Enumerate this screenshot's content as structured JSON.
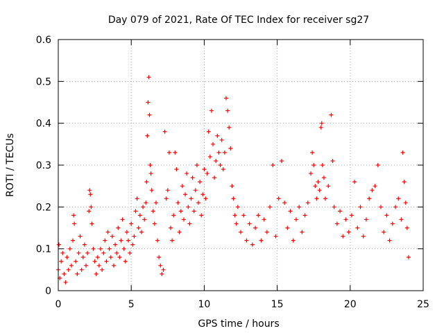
{
  "chart_data": {
    "type": "scatter",
    "title": "Day 079 of 2021, Rate Of TEC Index for receiver sg27",
    "xlabel": "GPS time / hours",
    "ylabel": "ROTI / TECUs",
    "xlim": [
      0,
      25
    ],
    "ylim": [
      0,
      0.6
    ],
    "xticks": [
      0,
      5,
      10,
      15,
      20,
      25
    ],
    "yticks": [
      0,
      0.1,
      0.2,
      0.3,
      0.4,
      0.5,
      0.6
    ],
    "grid": true,
    "marker": "+",
    "color": "#ff0000",
    "series": [
      {
        "name": "",
        "points": [
          [
            0.0,
            0.05
          ],
          [
            0.05,
            0.11
          ],
          [
            0.1,
            0.03
          ],
          [
            0.2,
            0.07
          ],
          [
            0.3,
            0.09
          ],
          [
            0.4,
            0.04
          ],
          [
            0.5,
            0.02
          ],
          [
            0.6,
            0.08
          ],
          [
            0.7,
            0.05
          ],
          [
            0.8,
            0.1
          ],
          [
            0.9,
            0.06
          ],
          [
            1.0,
            0.12
          ],
          [
            1.05,
            0.18
          ],
          [
            1.1,
            0.16
          ],
          [
            1.2,
            0.07
          ],
          [
            1.3,
            0.04
          ],
          [
            1.4,
            0.09
          ],
          [
            1.5,
            0.13
          ],
          [
            1.6,
            0.05
          ],
          [
            1.7,
            0.08
          ],
          [
            1.8,
            0.11
          ],
          [
            1.9,
            0.06
          ],
          [
            2.0,
            0.09
          ],
          [
            2.1,
            0.19
          ],
          [
            2.15,
            0.24
          ],
          [
            2.2,
            0.23
          ],
          [
            2.25,
            0.2
          ],
          [
            2.3,
            0.16
          ],
          [
            2.4,
            0.1
          ],
          [
            2.5,
            0.07
          ],
          [
            2.6,
            0.04
          ],
          [
            2.7,
            0.08
          ],
          [
            2.8,
            0.06
          ],
          [
            2.9,
            0.1
          ],
          [
            3.0,
            0.05
          ],
          [
            3.1,
            0.09
          ],
          [
            3.2,
            0.12
          ],
          [
            3.3,
            0.07
          ],
          [
            3.4,
            0.14
          ],
          [
            3.5,
            0.1
          ],
          [
            3.6,
            0.08
          ],
          [
            3.7,
            0.13
          ],
          [
            3.8,
            0.06
          ],
          [
            3.9,
            0.11
          ],
          [
            4.0,
            0.09
          ],
          [
            4.1,
            0.15
          ],
          [
            4.2,
            0.08
          ],
          [
            4.3,
            0.12
          ],
          [
            4.4,
            0.17
          ],
          [
            4.5,
            0.1
          ],
          [
            4.6,
            0.07
          ],
          [
            4.7,
            0.14
          ],
          [
            4.8,
            0.12
          ],
          [
            4.9,
            0.09
          ],
          [
            5.0,
            0.16
          ],
          [
            5.1,
            0.11
          ],
          [
            5.2,
            0.13
          ],
          [
            5.3,
            0.19
          ],
          [
            5.4,
            0.22
          ],
          [
            5.5,
            0.15
          ],
          [
            5.6,
            0.18
          ],
          [
            5.7,
            0.14
          ],
          [
            5.8,
            0.2
          ],
          [
            5.9,
            0.17
          ],
          [
            6.0,
            0.21
          ],
          [
            6.05,
            0.26
          ],
          [
            6.1,
            0.37
          ],
          [
            6.15,
            0.45
          ],
          [
            6.2,
            0.51
          ],
          [
            6.25,
            0.42
          ],
          [
            6.3,
            0.3
          ],
          [
            6.35,
            0.28
          ],
          [
            6.4,
            0.24
          ],
          [
            6.5,
            0.19
          ],
          [
            6.6,
            0.16
          ],
          [
            6.7,
            0.21
          ],
          [
            6.8,
            0.12
          ],
          [
            6.9,
            0.08
          ],
          [
            7.0,
            0.06
          ],
          [
            7.1,
            0.04
          ],
          [
            7.2,
            0.05
          ],
          [
            7.3,
            0.38
          ],
          [
            7.4,
            0.22
          ],
          [
            7.5,
            0.24
          ],
          [
            7.6,
            0.33
          ],
          [
            7.7,
            0.15
          ],
          [
            7.8,
            0.12
          ],
          [
            7.9,
            0.18
          ],
          [
            8.0,
            0.33
          ],
          [
            8.1,
            0.29
          ],
          [
            8.2,
            0.21
          ],
          [
            8.3,
            0.14
          ],
          [
            8.4,
            0.19
          ],
          [
            8.5,
            0.25
          ],
          [
            8.6,
            0.17
          ],
          [
            8.7,
            0.23
          ],
          [
            8.8,
            0.28
          ],
          [
            8.9,
            0.2
          ],
          [
            9.0,
            0.16
          ],
          [
            9.1,
            0.22
          ],
          [
            9.2,
            0.27
          ],
          [
            9.3,
            0.19
          ],
          [
            9.4,
            0.24
          ],
          [
            9.5,
            0.3
          ],
          [
            9.6,
            0.21
          ],
          [
            9.7,
            0.26
          ],
          [
            9.8,
            0.18
          ],
          [
            9.9,
            0.23
          ],
          [
            10.0,
            0.29
          ],
          [
            10.1,
            0.22
          ],
          [
            10.2,
            0.28
          ],
          [
            10.3,
            0.38
          ],
          [
            10.4,
            0.32
          ],
          [
            10.5,
            0.43
          ],
          [
            10.6,
            0.35
          ],
          [
            10.7,
            0.27
          ],
          [
            10.8,
            0.31
          ],
          [
            10.9,
            0.37
          ],
          [
            11.0,
            0.33
          ],
          [
            11.1,
            0.3
          ],
          [
            11.2,
            0.36
          ],
          [
            11.3,
            0.29
          ],
          [
            11.4,
            0.33
          ],
          [
            11.5,
            0.46
          ],
          [
            11.6,
            0.43
          ],
          [
            11.7,
            0.39
          ],
          [
            11.8,
            0.34
          ],
          [
            11.9,
            0.25
          ],
          [
            12.0,
            0.22
          ],
          [
            12.1,
            0.18
          ],
          [
            12.2,
            0.16
          ],
          [
            12.3,
            0.2
          ],
          [
            12.5,
            0.14
          ],
          [
            12.7,
            0.18
          ],
          [
            12.9,
            0.12
          ],
          [
            13.1,
            0.16
          ],
          [
            13.3,
            0.11
          ],
          [
            13.5,
            0.15
          ],
          [
            13.7,
            0.18
          ],
          [
            13.9,
            0.12
          ],
          [
            14.1,
            0.17
          ],
          [
            14.3,
            0.14
          ],
          [
            14.5,
            0.2
          ],
          [
            14.7,
            0.3
          ],
          [
            14.9,
            0.13
          ],
          [
            15.1,
            0.22
          ],
          [
            15.3,
            0.31
          ],
          [
            15.5,
            0.21
          ],
          [
            15.7,
            0.15
          ],
          [
            15.9,
            0.19
          ],
          [
            16.1,
            0.12
          ],
          [
            16.3,
            0.17
          ],
          [
            16.5,
            0.2
          ],
          [
            16.7,
            0.14
          ],
          [
            16.9,
            0.18
          ],
          [
            17.1,
            0.21
          ],
          [
            17.3,
            0.28
          ],
          [
            17.4,
            0.33
          ],
          [
            17.5,
            0.3
          ],
          [
            17.6,
            0.25
          ],
          [
            17.7,
            0.22
          ],
          [
            17.8,
            0.26
          ],
          [
            17.9,
            0.24
          ],
          [
            18.0,
            0.39
          ],
          [
            18.05,
            0.4
          ],
          [
            18.1,
            0.3
          ],
          [
            18.2,
            0.27
          ],
          [
            18.3,
            0.22
          ],
          [
            18.5,
            0.25
          ],
          [
            18.7,
            0.42
          ],
          [
            18.8,
            0.31
          ],
          [
            18.9,
            0.2
          ],
          [
            19.1,
            0.16
          ],
          [
            19.3,
            0.19
          ],
          [
            19.5,
            0.13
          ],
          [
            19.7,
            0.17
          ],
          [
            19.9,
            0.14
          ],
          [
            20.1,
            0.18
          ],
          [
            20.3,
            0.26
          ],
          [
            20.5,
            0.15
          ],
          [
            20.7,
            0.2
          ],
          [
            20.9,
            0.13
          ],
          [
            21.1,
            0.17
          ],
          [
            21.3,
            0.22
          ],
          [
            21.5,
            0.24
          ],
          [
            21.7,
            0.25
          ],
          [
            21.9,
            0.3
          ],
          [
            22.1,
            0.2
          ],
          [
            22.3,
            0.14
          ],
          [
            22.5,
            0.18
          ],
          [
            22.7,
            0.12
          ],
          [
            22.9,
            0.16
          ],
          [
            23.1,
            0.2
          ],
          [
            23.3,
            0.22
          ],
          [
            23.5,
            0.17
          ],
          [
            23.6,
            0.33
          ],
          [
            23.7,
            0.26
          ],
          [
            23.8,
            0.21
          ],
          [
            23.9,
            0.15
          ],
          [
            24.0,
            0.08
          ]
        ]
      }
    ]
  }
}
